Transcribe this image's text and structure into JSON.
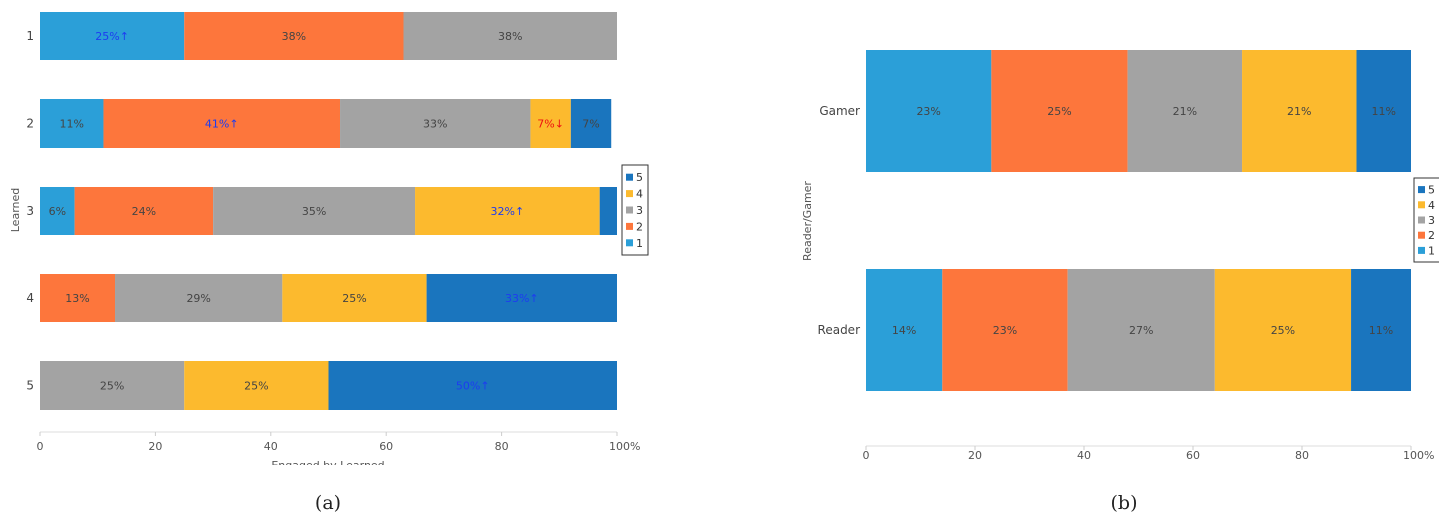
{
  "colors": {
    "1": "#2b9fd8",
    "2": "#fd763c",
    "3": "#a3a3a3",
    "4": "#fcba2e",
    "5": "#1a75be",
    "label_default": "#444444",
    "label_up": "#1d3cf0",
    "label_down": "#ee1111"
  },
  "chart_data": [
    {
      "type": "bar",
      "orientation": "horizontal",
      "stacked": true,
      "normalized": true,
      "caption": "(a)",
      "xlabel": "Engaged by Learned",
      "ylabel": "Learned",
      "xlim": [
        0,
        100
      ],
      "x_ticks": [
        "0",
        "20",
        "40",
        "60",
        "80",
        "100%"
      ],
      "categories": [
        "1",
        "2",
        "3",
        "4",
        "5"
      ],
      "legend": {
        "placement": "right",
        "entries": [
          "5",
          "4",
          "3",
          "2",
          "1"
        ]
      },
      "series": [
        {
          "name": "1",
          "values": [
            25,
            11,
            6,
            0,
            0
          ],
          "labels": [
            "25%",
            "11%",
            "6%",
            "",
            ""
          ],
          "marker": [
            "up",
            "",
            "",
            "",
            ""
          ]
        },
        {
          "name": "2",
          "values": [
            38,
            41,
            24,
            13,
            0
          ],
          "labels": [
            "38%",
            "41%",
            "24%",
            "13%",
            ""
          ],
          "marker": [
            "",
            "up",
            "",
            "",
            ""
          ]
        },
        {
          "name": "3",
          "values": [
            38,
            33,
            35,
            29,
            25
          ],
          "labels": [
            "38%",
            "33%",
            "35%",
            "29%",
            "25%"
          ],
          "marker": [
            "",
            "",
            "",
            "",
            ""
          ]
        },
        {
          "name": "4",
          "values": [
            0,
            7,
            32,
            25,
            25
          ],
          "labels": [
            "",
            "7%",
            "32%",
            "25%",
            "25%"
          ],
          "marker": [
            "",
            "down",
            "up",
            "",
            ""
          ]
        },
        {
          "name": "5",
          "values": [
            0,
            7,
            3,
            33,
            50
          ],
          "labels": [
            "",
            "7%",
            "",
            "33%",
            "50%"
          ],
          "marker": [
            "",
            "",
            "",
            "up",
            "up"
          ]
        }
      ]
    },
    {
      "type": "bar",
      "orientation": "horizontal",
      "stacked": true,
      "normalized": true,
      "caption": "(b)",
      "xlabel": "",
      "ylabel": "Reader/Gamer",
      "xlim": [
        0,
        100
      ],
      "x_ticks": [
        "0",
        "20",
        "40",
        "60",
        "80",
        "100%"
      ],
      "categories": [
        "Gamer",
        "Reader"
      ],
      "legend": {
        "placement": "right",
        "entries": [
          "5",
          "4",
          "3",
          "2",
          "1"
        ]
      },
      "series": [
        {
          "name": "1",
          "values": [
            23,
            14
          ],
          "labels": [
            "23%",
            "14%"
          ],
          "marker": [
            "",
            ""
          ]
        },
        {
          "name": "2",
          "values": [
            25,
            23
          ],
          "labels": [
            "25%",
            "23%"
          ],
          "marker": [
            "",
            ""
          ]
        },
        {
          "name": "3",
          "values": [
            21,
            27
          ],
          "labels": [
            "21%",
            "27%"
          ],
          "marker": [
            "",
            ""
          ]
        },
        {
          "name": "4",
          "values": [
            21,
            25
          ],
          "labels": [
            "21%",
            "25%"
          ],
          "marker": [
            "",
            ""
          ]
        },
        {
          "name": "5",
          "values": [
            11,
            11
          ],
          "labels": [
            "11%",
            "11%"
          ],
          "marker": [
            "",
            ""
          ]
        }
      ]
    }
  ]
}
